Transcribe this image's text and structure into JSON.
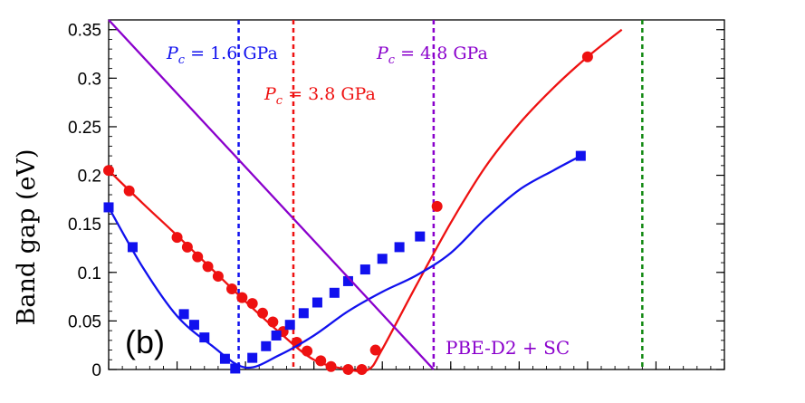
{
  "chart_data": {
    "type": "line",
    "title": "",
    "panel_label": "(b)",
    "ylabel": "Band gap (eV)",
    "xlabel": "",
    "ylim": [
      0,
      0.36
    ],
    "xlim": [
      0,
      9
    ],
    "yticks": [
      0,
      0.05,
      0.1,
      0.15,
      0.2,
      0.25,
      0.3,
      0.35
    ],
    "ytick_labels": [
      "0",
      "0.05",
      "0.1",
      "0.15",
      "0.2",
      "0.25",
      "0.3",
      "0.35"
    ],
    "x_minor_ticks": [
      0,
      0.2,
      0.4,
      0.6,
      0.8,
      1,
      1.2,
      1.4,
      1.6,
      1.8,
      2,
      2.2,
      2.4,
      2.6,
      2.8,
      3,
      3.2,
      3.4,
      3.6,
      3.8,
      4,
      4.2,
      4.4,
      4.6,
      4.8,
      5,
      5.2,
      5.4,
      5.6,
      5.8,
      6,
      6.2,
      6.4,
      6.6,
      6.8,
      7,
      7.2,
      7.4,
      7.6,
      7.8,
      8,
      8.2,
      8.4,
      8.6,
      8.8,
      9
    ],
    "x_major_ticks": [
      0,
      1,
      2,
      3,
      4,
      5,
      6,
      7,
      8,
      9
    ],
    "colors": {
      "red": "#ee1111",
      "blue": "#1111ee",
      "purple": "#8a00cc",
      "green": "#118811"
    },
    "series": [
      {
        "color_key": "red",
        "marker": "circle",
        "curve_x": [
          0,
          0.5,
          1,
          1.5,
          2,
          2.5,
          3,
          3.5,
          3.8,
          4,
          4.5,
          5,
          5.5,
          6,
          6.5,
          7,
          7.5
        ],
        "curve_y": [
          0.205,
          0.171,
          0.138,
          0.104,
          0.07,
          0.038,
          0.01,
          0.0,
          0.0,
          0.021,
          0.087,
          0.151,
          0.208,
          0.253,
          0.29,
          0.322,
          0.35
        ],
        "x": [
          0,
          0.3,
          1.0,
          1.15,
          1.3,
          1.45,
          1.6,
          1.8,
          1.95,
          2.1,
          2.25,
          2.4,
          2.55,
          2.75,
          2.9,
          3.1,
          3.25,
          3.5,
          3.7,
          3.9,
          4.8,
          7.0
        ],
        "y": [
          0.205,
          0.184,
          0.136,
          0.126,
          0.116,
          0.106,
          0.096,
          0.083,
          0.074,
          0.068,
          0.058,
          0.049,
          0.039,
          0.028,
          0.019,
          0.009,
          0.003,
          0.0,
          0.0,
          0.02,
          0.168,
          0.322
        ]
      },
      {
        "color_key": "blue",
        "marker": "square",
        "curve_x": [
          0,
          0.5,
          1,
          1.5,
          2,
          2.5,
          3,
          3.5,
          4,
          4.5,
          5,
          5.5,
          6,
          6.5,
          6.9
        ],
        "curve_y": [
          0.167,
          0.105,
          0.055,
          0.025,
          0.002,
          0.015,
          0.035,
          0.06,
          0.08,
          0.097,
          0.12,
          0.155,
          0.185,
          0.205,
          0.22
        ],
        "x": [
          0,
          0.35,
          1.1,
          1.25,
          1.4,
          1.7,
          1.85,
          2.1,
          2.3,
          2.45,
          2.65,
          2.85,
          3.05,
          3.3,
          3.5,
          3.75,
          4.0,
          4.25,
          4.55,
          6.9
        ],
        "y": [
          0.167,
          0.126,
          0.057,
          0.046,
          0.033,
          0.011,
          0.001,
          0.012,
          0.024,
          0.035,
          0.046,
          0.058,
          0.069,
          0.079,
          0.091,
          0.103,
          0.114,
          0.126,
          0.137,
          0.22
        ]
      },
      {
        "color_key": "purple",
        "marker": "none",
        "curve_x": [
          0,
          4.75
        ],
        "curve_y": [
          0.36,
          0.0
        ],
        "x": [],
        "y": []
      }
    ],
    "vlines": [
      {
        "x": 1.9,
        "color_key": "blue",
        "label": "P_c = 1.6 GPa"
      },
      {
        "x": 2.7,
        "color_key": "red",
        "label": "P_c = 3.8 GPa"
      },
      {
        "x": 4.75,
        "color_key": "purple",
        "label": "P_c = 4.8 GPa"
      },
      {
        "x": 7.8,
        "color_key": "green",
        "label": ""
      }
    ],
    "annotations": [
      {
        "text": "P",
        "sub": "c",
        "value": " = 1.6 GPa",
        "color_key": "blue"
      },
      {
        "text": "P",
        "sub": "c",
        "value": " = 3.8 GPa",
        "color_key": "red"
      },
      {
        "text": "P",
        "sub": "c",
        "value": " = 4.8 GPa",
        "color_key": "purple"
      },
      {
        "text": "PBE-D2 + SC",
        "color_key": "purple"
      }
    ]
  }
}
